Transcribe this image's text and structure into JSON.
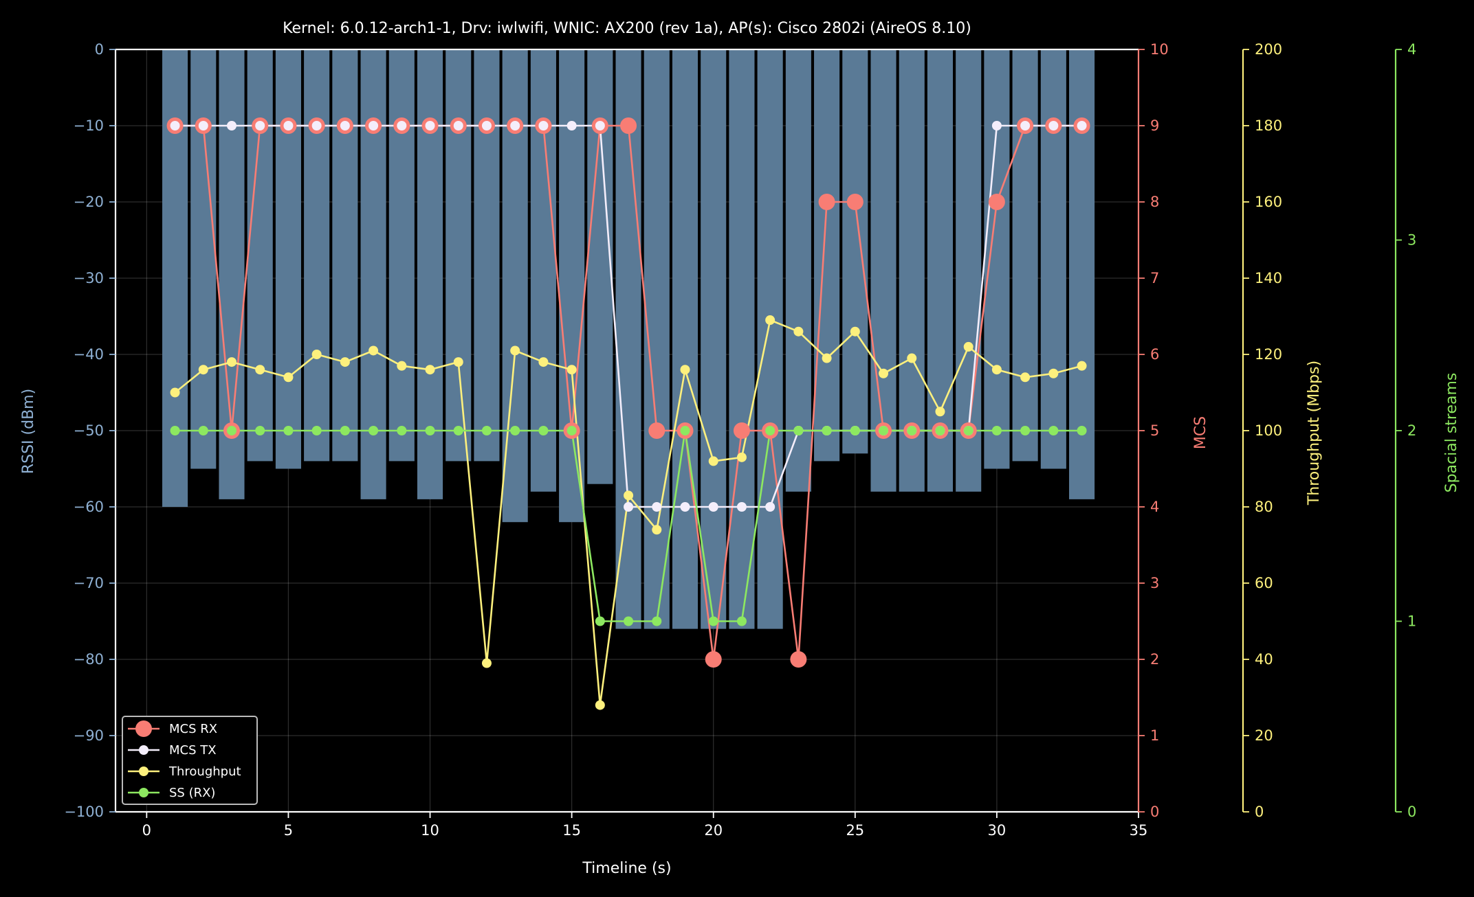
{
  "chart_data": {
    "type": "bar",
    "title": "Kernel: 6.0.12-arch1-1, Drv: iwlwifi, WNIC: AX200 (rev 1a), AP(s): Cisco 2802i (AireOS 8.10)",
    "xlabel": "Timeline (s)",
    "xlim": [
      -1.1,
      35
    ],
    "xticks": [
      0,
      5,
      10,
      15,
      20,
      25,
      30,
      35
    ],
    "grid": true,
    "legend_position": "lower-left",
    "colors": {
      "background": "#000000",
      "axis": "#ffffff",
      "rssi": "#8fb1d4",
      "bars": "#5a7a96",
      "mcs": "#f87d74",
      "mcs_tx": "#f4eefb",
      "throughput": "#fdf07d",
      "ss": "#8de860"
    },
    "axes": {
      "rssi": {
        "label": "RSSI (dBm)",
        "side": "left",
        "ylim": [
          -100,
          0
        ],
        "ticks": [
          0,
          -10,
          -20,
          -30,
          -40,
          -50,
          -60,
          -70,
          -80,
          -90,
          -100
        ],
        "tick_labels": [
          "0",
          "−10",
          "−20",
          "−30",
          "−40",
          "−50",
          "−60",
          "−70",
          "−80",
          "−90",
          "−100"
        ]
      },
      "mcs": {
        "label": "MCS",
        "side": "right",
        "ylim": [
          0,
          10
        ],
        "ticks": [
          0,
          1,
          2,
          3,
          4,
          5,
          6,
          7,
          8,
          9,
          10
        ],
        "tick_labels": [
          "0",
          "1",
          "2",
          "3",
          "4",
          "5",
          "6",
          "7",
          "8",
          "9",
          "10"
        ]
      },
      "throughput": {
        "label": "Throughput (Mbps)",
        "side": "right",
        "ylim": [
          0,
          200
        ],
        "ticks": [
          0,
          20,
          40,
          60,
          80,
          100,
          120,
          140,
          160,
          180,
          200
        ],
        "tick_labels": [
          "0",
          "20",
          "40",
          "60",
          "80",
          "100",
          "120",
          "140",
          "160",
          "180",
          "200"
        ]
      },
      "ss": {
        "label": "Spacial streams",
        "side": "right",
        "ylim": [
          0,
          4
        ],
        "ticks": [
          0,
          1,
          2,
          3,
          4
        ],
        "tick_labels": [
          "0",
          "1",
          "2",
          "3",
          "4"
        ]
      }
    },
    "x": [
      1,
      2,
      3,
      4,
      5,
      6,
      7,
      8,
      9,
      10,
      11,
      12,
      13,
      14,
      15,
      16,
      17,
      18,
      19,
      20,
      21,
      22,
      23,
      24,
      25,
      26,
      27,
      28,
      29,
      30,
      31,
      32,
      33
    ],
    "bars": {
      "axis": "rssi",
      "values": [
        -60,
        -55,
        -59,
        -54,
        -55,
        -54,
        -54,
        -59,
        -54,
        -59,
        -54,
        -54,
        -62,
        -58,
        -62,
        -57,
        -76,
        -76,
        -76,
        -76,
        -76,
        -76,
        -58,
        -54,
        -53,
        -58,
        -58,
        -58,
        -58,
        -55,
        -54,
        -55,
        -59
      ]
    },
    "series": [
      {
        "name": "MCS RX",
        "axis": "mcs",
        "values": [
          9,
          9,
          5,
          9,
          9,
          9,
          9,
          9,
          9,
          9,
          9,
          9,
          9,
          9,
          5,
          9,
          9,
          5,
          5,
          2,
          5,
          5,
          2,
          8,
          8,
          5,
          5,
          5,
          5,
          8,
          9,
          9,
          9
        ]
      },
      {
        "name": "MCS TX",
        "axis": "mcs",
        "values": [
          9,
          9,
          9,
          9,
          9,
          9,
          9,
          9,
          9,
          9,
          9,
          9,
          9,
          9,
          9,
          9,
          4,
          4,
          4,
          4,
          4,
          4,
          5,
          5,
          5,
          5,
          5,
          5,
          5,
          9,
          9,
          9,
          9
        ]
      },
      {
        "name": "Throughput",
        "axis": "throughput",
        "values": [
          110,
          116,
          118,
          116,
          114,
          120,
          118,
          121,
          117,
          116,
          118,
          39,
          121,
          118,
          116,
          28,
          83,
          74,
          116,
          92,
          93,
          129,
          126,
          119,
          126,
          115,
          119,
          105,
          122,
          116,
          114,
          115,
          117
        ]
      },
      {
        "name": "SS (RX)",
        "axis": "ss",
        "values": [
          2,
          2,
          2,
          2,
          2,
          2,
          2,
          2,
          2,
          2,
          2,
          2,
          2,
          2,
          2,
          1,
          1,
          1,
          2,
          1,
          1,
          2,
          2,
          2,
          2,
          2,
          2,
          2,
          2,
          2,
          2,
          2,
          2
        ]
      }
    ]
  }
}
